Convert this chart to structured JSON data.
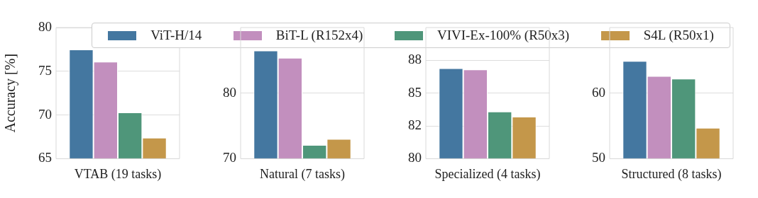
{
  "chart_data": [
    {
      "type": "bar",
      "ylabel": "Accuracy [%]",
      "categories": [
        "VTAB (19 tasks)"
      ],
      "ylim": [
        65,
        80
      ],
      "yticks": [
        65,
        70,
        75,
        80
      ],
      "grid": "y",
      "legend": "top",
      "series": [
        {
          "name": "ViT-H/14",
          "color": "#4477a0",
          "values": [
            77.5
          ]
        },
        {
          "name": "BiT-L (R152x4)",
          "color": "#c28fbe",
          "values": [
            76.1
          ]
        },
        {
          "name": "VIVI-Ex-100% (R50x3)",
          "color": "#4f967a",
          "values": [
            70.3
          ]
        },
        {
          "name": "S4L (R50x1)",
          "color": "#c4974a",
          "values": [
            67.4
          ]
        }
      ]
    },
    {
      "type": "bar",
      "categories": [
        "Natural (7 tasks)"
      ],
      "ylim": [
        70,
        90
      ],
      "yticks": [
        70,
        80
      ],
      "grid": "y",
      "series": [
        {
          "color": "#4477a0",
          "values": [
            86.5
          ]
        },
        {
          "color": "#c28fbe",
          "values": [
            85.4
          ]
        },
        {
          "color": "#4f967a",
          "values": [
            72.1
          ]
        },
        {
          "color": "#c4974a",
          "values": [
            73.0
          ]
        }
      ]
    },
    {
      "type": "bar",
      "categories": [
        "Specialized (4 tasks)"
      ],
      "ylim": [
        80,
        90
      ],
      "yticks": [
        80,
        {
          "value": 82.5,
          "label": "82"
        },
        85,
        {
          "value": 87.5,
          "label": "88"
        }
      ],
      "grid": "y",
      "series": [
        {
          "color": "#4477a0",
          "values": [
            86.9
          ]
        },
        {
          "color": "#c28fbe",
          "values": [
            86.8
          ]
        },
        {
          "color": "#4f967a",
          "values": [
            83.6
          ]
        },
        {
          "color": "#c4974a",
          "values": [
            83.2
          ]
        }
      ]
    },
    {
      "type": "bar",
      "categories": [
        "Structured (8 tasks)"
      ],
      "ylim": [
        50,
        70
      ],
      "yticks": [
        50,
        60
      ],
      "grid": "y",
      "series": [
        {
          "color": "#4477a0",
          "values": [
            64.9
          ]
        },
        {
          "color": "#c28fbe",
          "values": [
            62.6
          ]
        },
        {
          "color": "#4f967a",
          "values": [
            62.2
          ]
        },
        {
          "color": "#c4974a",
          "values": [
            54.7
          ]
        }
      ]
    }
  ]
}
